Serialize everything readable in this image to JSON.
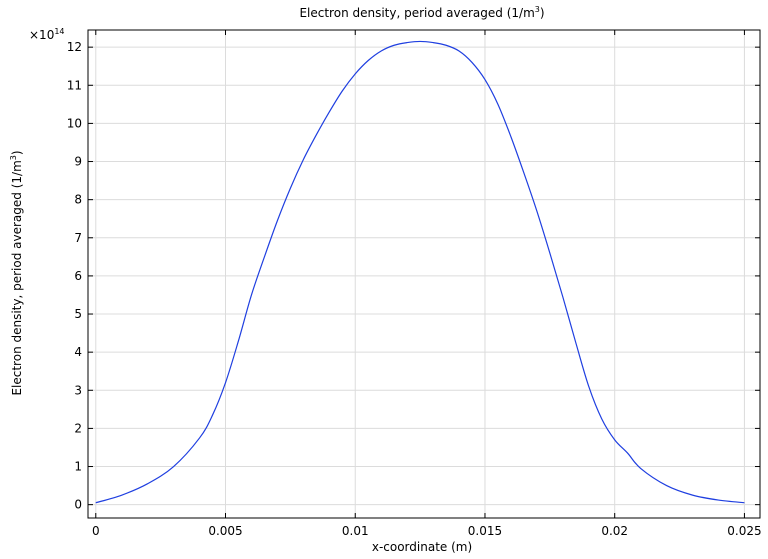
{
  "chart_data": {
    "type": "line",
    "title": "Electron density, period averaged (1/m",
    "title_sup": "3",
    "title_suffix": ")",
    "xlabel": "x-coordinate (m)",
    "ylabel": "Electron density, period averaged (1/m",
    "ylabel_sup": "3",
    "ylabel_suffix": ")",
    "y_multiplier_prefix": "×10",
    "y_multiplier_exp": "14",
    "xlim": [
      -0.0003,
      0.0256
    ],
    "ylim": [
      -0.35,
      12.45
    ],
    "x_ticks": [
      0,
      0.005,
      0.01,
      0.015,
      0.02,
      0.025
    ],
    "x_tick_labels": [
      "0",
      "0.005",
      "0.01",
      "0.015",
      "0.02",
      "0.025"
    ],
    "y_ticks": [
      0,
      1,
      2,
      3,
      4,
      5,
      6,
      7,
      8,
      9,
      10,
      11,
      12
    ],
    "y_tick_labels": [
      "0",
      "1",
      "2",
      "3",
      "4",
      "5",
      "6",
      "7",
      "8",
      "9",
      "10",
      "11",
      "12"
    ],
    "grid": true,
    "series_color": "#1f3fe0",
    "x": [
      0,
      0.001,
      0.002,
      0.003,
      0.004,
      0.0045,
      0.005,
      0.0055,
      0.006,
      0.0065,
      0.007,
      0.0075,
      0.008,
      0.0085,
      0.009,
      0.0095,
      0.01,
      0.0105,
      0.011,
      0.0115,
      0.012,
      0.0125,
      0.013,
      0.0135,
      0.014,
      0.0145,
      0.015,
      0.0155,
      0.016,
      0.0165,
      0.017,
      0.0175,
      0.018,
      0.0185,
      0.019,
      0.0195,
      0.02,
      0.0205,
      0.021,
      0.022,
      0.023,
      0.024,
      0.025
    ],
    "y": [
      0.05,
      0.25,
      0.55,
      1.0,
      1.75,
      2.35,
      3.2,
      4.3,
      5.5,
      6.5,
      7.45,
      8.3,
      9.05,
      9.7,
      10.3,
      10.85,
      11.3,
      11.65,
      11.9,
      12.05,
      12.12,
      12.15,
      12.12,
      12.05,
      11.9,
      11.6,
      11.15,
      10.5,
      9.65,
      8.7,
      7.7,
      6.6,
      5.45,
      4.25,
      3.1,
      2.25,
      1.7,
      1.35,
      0.95,
      0.5,
      0.25,
      0.12,
      0.05
    ]
  }
}
